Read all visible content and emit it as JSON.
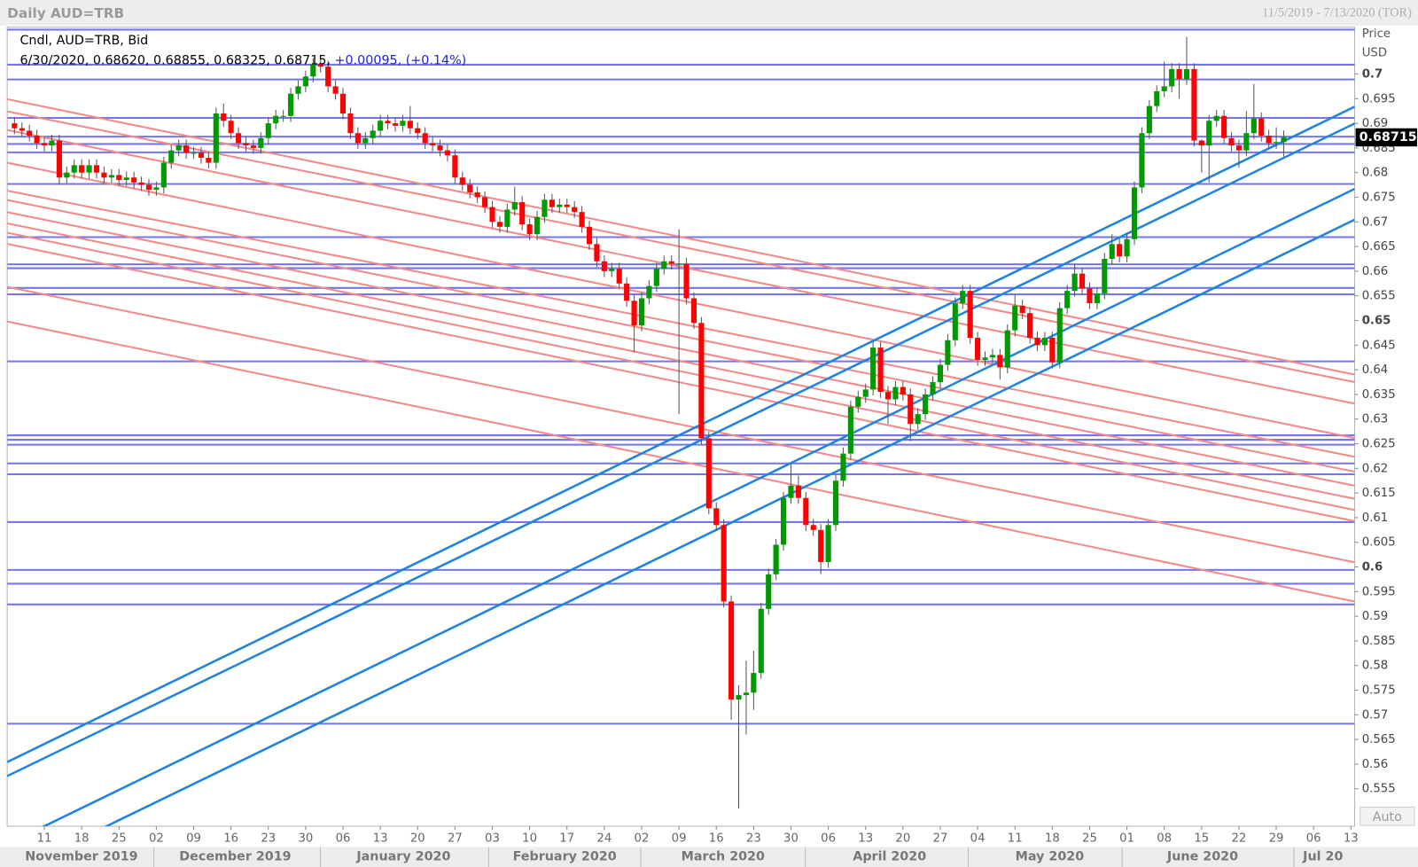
{
  "chart_data": {
    "type": "candlestick",
    "title": "Daily AUD=TRB",
    "date_range": "11/5/2019 - 7/13/2020 (TOR)",
    "legend_title": "Cndl, AUD=TRB, Bid",
    "legend_values": "6/30/2020, 0.68620, 0.68855, 0.68325, 0.68715,",
    "legend_change": "+0.00095, (+0.14%)",
    "y_axis_label": "Price",
    "y_axis_unit": "USD",
    "auto_button": "Auto",
    "up_color": "#009a00",
    "down_color": "#ff0000",
    "wick_color": "#555555",
    "candles": [
      [
        0.69,
        0.6912,
        0.6878,
        0.689
      ],
      [
        0.689,
        0.6902,
        0.6873,
        0.6885
      ],
      [
        0.6885,
        0.6897,
        0.6863,
        0.6875
      ],
      [
        0.6875,
        0.6887,
        0.6848,
        0.686
      ],
      [
        0.686,
        0.6872,
        0.6843,
        0.6855
      ],
      [
        0.6855,
        0.6877,
        0.6843,
        0.6865
      ],
      [
        0.6865,
        0.6877,
        0.6775,
        0.679
      ],
      [
        0.679,
        0.6812,
        0.6778,
        0.68
      ],
      [
        0.68,
        0.6827,
        0.6788,
        0.6815
      ],
      [
        0.6815,
        0.6827,
        0.6788,
        0.68
      ],
      [
        0.68,
        0.6827,
        0.6788,
        0.6815
      ],
      [
        0.6815,
        0.6827,
        0.6788,
        0.68
      ],
      [
        0.68,
        0.6812,
        0.6778,
        0.679
      ],
      [
        0.679,
        0.6807,
        0.6778,
        0.6795
      ],
      [
        0.6795,
        0.6807,
        0.6773,
        0.6785
      ],
      [
        0.6785,
        0.6802,
        0.6773,
        0.679
      ],
      [
        0.679,
        0.6802,
        0.6768,
        0.678
      ],
      [
        0.678,
        0.6792,
        0.6763,
        0.6775
      ],
      [
        0.6775,
        0.6787,
        0.6753,
        0.6765
      ],
      [
        0.6765,
        0.6782,
        0.6753,
        0.677
      ],
      [
        0.677,
        0.6832,
        0.6758,
        0.682
      ],
      [
        0.682,
        0.6857,
        0.6808,
        0.6845
      ],
      [
        0.6845,
        0.6867,
        0.6833,
        0.6855
      ],
      [
        0.6855,
        0.6867,
        0.6828,
        0.684
      ],
      [
        0.684,
        0.6852,
        0.6828,
        0.684
      ],
      [
        0.684,
        0.6852,
        0.6818,
        0.683
      ],
      [
        0.683,
        0.6842,
        0.6808,
        0.682
      ],
      [
        0.682,
        0.6932,
        0.6808,
        0.692
      ],
      [
        0.692,
        0.694,
        0.6893,
        0.6905
      ],
      [
        0.6905,
        0.6917,
        0.6868,
        0.688
      ],
      [
        0.688,
        0.6892,
        0.6848,
        0.686
      ],
      [
        0.686,
        0.6872,
        0.6843,
        0.6855
      ],
      [
        0.6855,
        0.6867,
        0.6838,
        0.685
      ],
      [
        0.685,
        0.6882,
        0.6838,
        0.687
      ],
      [
        0.687,
        0.6912,
        0.6858,
        0.69
      ],
      [
        0.69,
        0.6927,
        0.6888,
        0.6915
      ],
      [
        0.6915,
        0.6927,
        0.6903,
        0.6915
      ],
      [
        0.6915,
        0.6972,
        0.6903,
        0.696
      ],
      [
        0.696,
        0.6987,
        0.6948,
        0.6975
      ],
      [
        0.6975,
        0.7007,
        0.6963,
        0.6995
      ],
      [
        0.6995,
        0.7032,
        0.6983,
        0.702
      ],
      [
        0.702,
        0.7032,
        0.7003,
        0.7015
      ],
      [
        0.7015,
        0.7027,
        0.6963,
        0.6975
      ],
      [
        0.6975,
        0.6987,
        0.6948,
        0.696
      ],
      [
        0.696,
        0.6972,
        0.6908,
        0.692
      ],
      [
        0.692,
        0.6932,
        0.6868,
        0.688
      ],
      [
        0.688,
        0.6892,
        0.6848,
        0.686
      ],
      [
        0.686,
        0.6882,
        0.6848,
        0.687
      ],
      [
        0.687,
        0.6897,
        0.6858,
        0.6885
      ],
      [
        0.6885,
        0.6917,
        0.6873,
        0.6905
      ],
      [
        0.6905,
        0.6917,
        0.6888,
        0.69
      ],
      [
        0.69,
        0.6912,
        0.6883,
        0.6895
      ],
      [
        0.6895,
        0.6917,
        0.6883,
        0.6905
      ],
      [
        0.6905,
        0.6935,
        0.6878,
        0.689
      ],
      [
        0.689,
        0.6902,
        0.6868,
        0.688
      ],
      [
        0.688,
        0.6892,
        0.6848,
        0.686
      ],
      [
        0.686,
        0.6872,
        0.6843,
        0.6855
      ],
      [
        0.6855,
        0.6867,
        0.6833,
        0.6845
      ],
      [
        0.6845,
        0.6857,
        0.6823,
        0.6835
      ],
      [
        0.6835,
        0.6847,
        0.6778,
        0.679
      ],
      [
        0.679,
        0.6802,
        0.6763,
        0.6775
      ],
      [
        0.6775,
        0.6787,
        0.6748,
        0.676
      ],
      [
        0.676,
        0.6772,
        0.6738,
        0.675
      ],
      [
        0.675,
        0.6762,
        0.6718,
        0.673
      ],
      [
        0.673,
        0.6742,
        0.6688,
        0.67
      ],
      [
        0.67,
        0.6712,
        0.6678,
        0.669
      ],
      [
        0.669,
        0.6737,
        0.6678,
        0.6725
      ],
      [
        0.6725,
        0.6772,
        0.6713,
        0.674
      ],
      [
        0.674,
        0.6752,
        0.6683,
        0.6695
      ],
      [
        0.6695,
        0.6707,
        0.6663,
        0.6675
      ],
      [
        0.6675,
        0.6722,
        0.6663,
        0.671
      ],
      [
        0.671,
        0.6757,
        0.6698,
        0.6745
      ],
      [
        0.6745,
        0.6757,
        0.6718,
        0.673
      ],
      [
        0.673,
        0.6747,
        0.6718,
        0.6735
      ],
      [
        0.6735,
        0.6747,
        0.6718,
        0.673
      ],
      [
        0.673,
        0.6742,
        0.6708,
        0.672
      ],
      [
        0.672,
        0.6732,
        0.6678,
        0.669
      ],
      [
        0.669,
        0.6702,
        0.6643,
        0.6655
      ],
      [
        0.6655,
        0.6667,
        0.6608,
        0.662
      ],
      [
        0.662,
        0.6632,
        0.6588,
        0.66
      ],
      [
        0.66,
        0.6617,
        0.6588,
        0.6605
      ],
      [
        0.6605,
        0.6617,
        0.6563,
        0.6575
      ],
      [
        0.6575,
        0.6587,
        0.6528,
        0.654
      ],
      [
        0.654,
        0.6552,
        0.6435,
        0.649
      ],
      [
        0.649,
        0.6557,
        0.6478,
        0.6545
      ],
      [
        0.6545,
        0.6582,
        0.6533,
        0.657
      ],
      [
        0.657,
        0.6617,
        0.6558,
        0.6605
      ],
      [
        0.6605,
        0.6632,
        0.6593,
        0.662
      ],
      [
        0.662,
        0.6632,
        0.6603,
        0.6615
      ],
      [
        0.6615,
        0.6685,
        0.631,
        0.6615
      ],
      [
        0.6615,
        0.6627,
        0.6533,
        0.6545
      ],
      [
        0.6545,
        0.6557,
        0.6483,
        0.6495
      ],
      [
        0.6495,
        0.6507,
        0.6249,
        0.6261
      ],
      [
        0.6261,
        0.6275,
        0.6107,
        0.6119
      ],
      [
        0.6119,
        0.6131,
        0.6073,
        0.6085
      ],
      [
        0.6085,
        0.6097,
        0.5918,
        0.593
      ],
      [
        0.593,
        0.5942,
        0.569,
        0.5731
      ],
      [
        0.5731,
        0.576,
        0.551,
        0.574
      ],
      [
        0.574,
        0.581,
        0.566,
        0.5745
      ],
      [
        0.5745,
        0.583,
        0.571,
        0.5785
      ],
      [
        0.5785,
        0.5927,
        0.5773,
        0.5915
      ],
      [
        0.5915,
        0.5997,
        0.5903,
        0.5985
      ],
      [
        0.5985,
        0.6057,
        0.5973,
        0.6045
      ],
      [
        0.6045,
        0.6152,
        0.6033,
        0.614
      ],
      [
        0.614,
        0.621,
        0.6128,
        0.6165
      ],
      [
        0.6165,
        0.6185,
        0.6128,
        0.614
      ],
      [
        0.614,
        0.6152,
        0.6073,
        0.6085
      ],
      [
        0.6085,
        0.6097,
        0.6063,
        0.6075
      ],
      [
        0.6075,
        0.6087,
        0.5985,
        0.601
      ],
      [
        0.601,
        0.6097,
        0.5998,
        0.6085
      ],
      [
        0.6085,
        0.6187,
        0.6073,
        0.6175
      ],
      [
        0.6175,
        0.6242,
        0.6163,
        0.623
      ],
      [
        0.623,
        0.6337,
        0.6218,
        0.6325
      ],
      [
        0.6325,
        0.6357,
        0.6313,
        0.6345
      ],
      [
        0.6345,
        0.6372,
        0.6333,
        0.636
      ],
      [
        0.636,
        0.6457,
        0.6348,
        0.6445
      ],
      [
        0.6445,
        0.6457,
        0.6343,
        0.6355
      ],
      [
        0.6355,
        0.6367,
        0.629,
        0.634
      ],
      [
        0.634,
        0.6377,
        0.6328,
        0.6365
      ],
      [
        0.6365,
        0.6377,
        0.6338,
        0.635
      ],
      [
        0.635,
        0.6362,
        0.6255,
        0.629
      ],
      [
        0.629,
        0.6322,
        0.6278,
        0.631
      ],
      [
        0.631,
        0.6362,
        0.6298,
        0.635
      ],
      [
        0.635,
        0.6387,
        0.6338,
        0.6375
      ],
      [
        0.6375,
        0.6422,
        0.6363,
        0.641
      ],
      [
        0.641,
        0.6472,
        0.6398,
        0.646
      ],
      [
        0.646,
        0.6547,
        0.6448,
        0.6535
      ],
      [
        0.6535,
        0.6572,
        0.6523,
        0.656
      ],
      [
        0.656,
        0.6572,
        0.6453,
        0.6465
      ],
      [
        0.6465,
        0.6477,
        0.6408,
        0.642
      ],
      [
        0.642,
        0.6437,
        0.6408,
        0.6425
      ],
      [
        0.6425,
        0.6442,
        0.6413,
        0.643
      ],
      [
        0.643,
        0.6442,
        0.638,
        0.6405
      ],
      [
        0.6405,
        0.6492,
        0.6393,
        0.648
      ],
      [
        0.648,
        0.6552,
        0.6468,
        0.653
      ],
      [
        0.653,
        0.6542,
        0.6503,
        0.6515
      ],
      [
        0.6515,
        0.6527,
        0.6453,
        0.6465
      ],
      [
        0.6465,
        0.6477,
        0.6438,
        0.645
      ],
      [
        0.645,
        0.6477,
        0.6438,
        0.6465
      ],
      [
        0.6465,
        0.6477,
        0.6403,
        0.6415
      ],
      [
        0.6415,
        0.6537,
        0.6403,
        0.6525
      ],
      [
        0.6525,
        0.6572,
        0.6513,
        0.656
      ],
      [
        0.656,
        0.6615,
        0.6548,
        0.6595
      ],
      [
        0.6595,
        0.6607,
        0.6553,
        0.6565
      ],
      [
        0.6565,
        0.6577,
        0.6523,
        0.6535
      ],
      [
        0.6535,
        0.6567,
        0.6523,
        0.6555
      ],
      [
        0.6555,
        0.6637,
        0.6543,
        0.6625
      ],
      [
        0.6625,
        0.6675,
        0.6613,
        0.6655
      ],
      [
        0.6655,
        0.6667,
        0.6618,
        0.663
      ],
      [
        0.663,
        0.6677,
        0.6618,
        0.6665
      ],
      [
        0.6665,
        0.6782,
        0.6653,
        0.677
      ],
      [
        0.677,
        0.6892,
        0.6758,
        0.688
      ],
      [
        0.688,
        0.6947,
        0.6868,
        0.6935
      ],
      [
        0.6935,
        0.6977,
        0.6923,
        0.6965
      ],
      [
        0.6965,
        0.7025,
        0.6953,
        0.6975
      ],
      [
        0.6975,
        0.7022,
        0.6963,
        0.701
      ],
      [
        0.701,
        0.7022,
        0.695,
        0.699
      ],
      [
        0.699,
        0.7075,
        0.6978,
        0.701
      ],
      [
        0.701,
        0.7022,
        0.6853,
        0.6865
      ],
      [
        0.6865,
        0.6867,
        0.68,
        0.6855
      ],
      [
        0.6855,
        0.6917,
        0.678,
        0.6905
      ],
      [
        0.6905,
        0.6927,
        0.6893,
        0.6915
      ],
      [
        0.6915,
        0.6927,
        0.6858,
        0.687
      ],
      [
        0.687,
        0.6882,
        0.6843,
        0.6855
      ],
      [
        0.6855,
        0.6867,
        0.681,
        0.6845
      ],
      [
        0.6845,
        0.6925,
        0.6833,
        0.688
      ],
      [
        0.688,
        0.698,
        0.6868,
        0.691
      ],
      [
        0.691,
        0.6922,
        0.6863,
        0.6875
      ],
      [
        0.6875,
        0.6887,
        0.6848,
        0.686
      ],
      [
        0.686,
        0.6892,
        0.6848,
        0.6862
      ],
      [
        0.6862,
        0.68855,
        0.68325,
        0.68715
      ]
    ],
    "xlim": [
      -0.97,
      179.5
    ],
    "ylim": [
      0.5474,
      0.7095
    ],
    "xticks": [
      {
        "value": 4,
        "label": "11"
      },
      {
        "value": 9,
        "label": "18"
      },
      {
        "value": 14,
        "label": "25"
      },
      {
        "value": 19,
        "label": "02"
      },
      {
        "value": 24,
        "label": "09"
      },
      {
        "value": 29,
        "label": "16"
      },
      {
        "value": 34,
        "label": "23"
      },
      {
        "value": 39,
        "label": "30"
      },
      {
        "value": 44,
        "label": "06"
      },
      {
        "value": 49,
        "label": "13"
      },
      {
        "value": 54,
        "label": "20"
      },
      {
        "value": 59,
        "label": "27"
      },
      {
        "value": 64,
        "label": "03"
      },
      {
        "value": 69,
        "label": "10"
      },
      {
        "value": 74,
        "label": "17"
      },
      {
        "value": 79,
        "label": "24"
      },
      {
        "value": 84,
        "label": "02"
      },
      {
        "value": 89,
        "label": "09"
      },
      {
        "value": 94,
        "label": "16"
      },
      {
        "value": 99,
        "label": "23"
      },
      {
        "value": 104,
        "label": "30"
      },
      {
        "value": 109,
        "label": "06"
      },
      {
        "value": 114,
        "label": "13"
      },
      {
        "value": 119,
        "label": "20"
      },
      {
        "value": 124,
        "label": "27"
      },
      {
        "value": 129,
        "label": "04"
      },
      {
        "value": 134,
        "label": "11"
      },
      {
        "value": 139,
        "label": "18"
      },
      {
        "value": 144,
        "label": "25"
      },
      {
        "value": 149,
        "label": "01"
      },
      {
        "value": 154,
        "label": "08"
      },
      {
        "value": 159,
        "label": "15"
      },
      {
        "value": 164,
        "label": "22"
      },
      {
        "value": 169,
        "label": "29"
      },
      {
        "value": 174,
        "label": "06"
      },
      {
        "value": 179,
        "label": "13"
      }
    ],
    "yticks": [
      0.555,
      0.56,
      0.565,
      0.57,
      0.575,
      0.58,
      0.585,
      0.59,
      0.595,
      0.6,
      0.605,
      0.61,
      0.615,
      0.62,
      0.625,
      0.63,
      0.635,
      0.64,
      0.645,
      0.65,
      0.655,
      0.66,
      0.665,
      0.67,
      0.675,
      0.68,
      0.685,
      0.69,
      0.695,
      0.7
    ],
    "months": [
      "November 2019",
      "December 2019",
      "January 2020",
      "February 2020",
      "March 2020",
      "April 2020",
      "May 2020",
      "June 2020",
      "Jul 20"
    ],
    "horizontal_lines": {
      "color": "#7474ec",
      "values": [
        0.709,
        0.7019,
        0.6989,
        0.6911,
        0.6873,
        0.6858,
        0.6841,
        0.6777,
        0.6669,
        0.6614,
        0.6606,
        0.6566,
        0.6553,
        0.6417,
        0.6267,
        0.6258,
        0.6248,
        0.621,
        0.6188,
        0.6091,
        0.5994,
        0.5966,
        0.5924,
        0.5682
      ]
    },
    "red_trendlines": {
      "color": "#f4898b",
      "lines": [
        [
          -0.97,
          0.69489,
          179.5,
          0.63902
        ],
        [
          -0.97,
          0.69242,
          179.5,
          0.6375
        ],
        [
          -0.97,
          0.68864,
          179.5,
          0.63314
        ],
        [
          -0.97,
          0.68201,
          179.5,
          0.62614
        ],
        [
          -0.97,
          0.67633,
          179.5,
          0.62235
        ],
        [
          -0.97,
          0.67443,
          179.5,
          0.61932
        ],
        [
          -0.97,
          0.67197,
          179.5,
          0.61648
        ],
        [
          -0.97,
          0.6697,
          179.5,
          0.61383
        ],
        [
          -0.97,
          0.6678,
          179.5,
          0.61155
        ],
        [
          -0.97,
          0.66553,
          179.5,
          0.60928
        ],
        [
          -0.97,
          0.65682,
          179.5,
          0.60095
        ],
        [
          -0.97,
          0.64981,
          179.5,
          0.59299
        ]
      ]
    },
    "blue_trendlines": {
      "color": "#1e84e0",
      "lines": [
        [
          -0.97,
          0.56042,
          179.5,
          0.69337
        ],
        [
          -0.97,
          0.55758,
          179.5,
          0.68996
        ],
        [
          -0.97,
          0.54375,
          179.5,
          0.6767
        ],
        [
          5.58,
          0.54243,
          179.5,
          0.67045
        ]
      ]
    }
  }
}
